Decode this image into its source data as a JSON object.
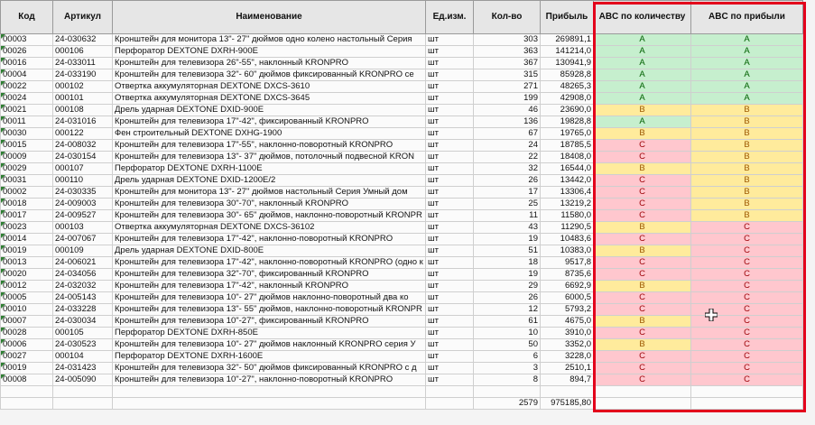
{
  "columns": {
    "code": "Код",
    "article": "Артикул",
    "name": "Наименование",
    "unit": "Ед.изм.",
    "qty": "Кол-во",
    "profit": "Прибыль",
    "abc_qty": "ABC по количеству",
    "abc_profit": "ABC по прибыли"
  },
  "rows": [
    {
      "code": "00003",
      "article": "24-030632",
      "name": "Кронштейн для монитора 13\"- 27\" дюймов одно колено настольный Серия",
      "unit": "шт",
      "qty": "303",
      "profit": "269891,1",
      "abc_qty": "A",
      "abc_profit": "A"
    },
    {
      "code": "00026",
      "article": "000106",
      "name": "Перфоратор DEXTONE DXRH-900E",
      "unit": "шт",
      "qty": "363",
      "profit": "141214,0",
      "abc_qty": "A",
      "abc_profit": "A"
    },
    {
      "code": "00016",
      "article": "24-033011",
      "name": "Кронштейн для телевизора 26\"-55\", наклонный KRONPRO",
      "unit": "шт",
      "qty": "367",
      "profit": "130941,9",
      "abc_qty": "A",
      "abc_profit": "A"
    },
    {
      "code": "00004",
      "article": "24-033190",
      "name": "Кронштейн для телевизора  32\"- 60\" дюймов фиксированный KRONPRO се",
      "unit": "шт",
      "qty": "315",
      "profit": "85928,8",
      "abc_qty": "A",
      "abc_profit": "A"
    },
    {
      "code": "00022",
      "article": "000102",
      "name": "Отвертка аккумуляторная DEXTONE DXCS-3610",
      "unit": "шт",
      "qty": "271",
      "abc_qty": "A",
      "profit": "48265,3",
      "abc_profit": "A"
    },
    {
      "code": "00024",
      "article": "000101",
      "name": "Отвертка аккумуляторная DEXTONE DXCS-3645",
      "unit": "шт",
      "qty": "199",
      "profit": "42908,0",
      "abc_qty": "A",
      "abc_profit": "A"
    },
    {
      "code": "00021",
      "article": "000108",
      "name": "Дрель ударная DEXTONE DXID-900E",
      "unit": "шт",
      "qty": "46",
      "profit": "23690,0",
      "abc_qty": "B",
      "abc_profit": "B"
    },
    {
      "code": "00011",
      "article": "24-031016",
      "name": "Кронштейн для телевизора 17\"-42\", фиксированный KRONPRO",
      "unit": "шт",
      "qty": "136",
      "profit": "19828,8",
      "abc_qty": "A",
      "abc_profit": "B"
    },
    {
      "code": "00030",
      "article": "000122",
      "name": "Фен строительный  DEXTONE DXHG-1900",
      "unit": "шт",
      "qty": "67",
      "profit": "19765,0",
      "abc_qty": "B",
      "abc_profit": "B"
    },
    {
      "code": "00015",
      "article": "24-008032",
      "name": "Кронштейн для телевизора 17\"-55\", наклонно-поворотный KRONPRO",
      "unit": "шт",
      "qty": "24",
      "profit": "18785,5",
      "abc_qty": "C",
      "abc_profit": "B"
    },
    {
      "code": "00009",
      "article": "24-030154",
      "name": "Кронштейн для телевизора 13\"- 37\" дюймов, потолочный подвесной  KRON",
      "unit": "шт",
      "qty": "22",
      "profit": "18408,0",
      "abc_qty": "C",
      "abc_profit": "B"
    },
    {
      "code": "00029",
      "article": "000107",
      "name": "Перфоратор DEXTONE DXRH-1100E",
      "unit": "шт",
      "qty": "32",
      "profit": "16544,0",
      "abc_qty": "B",
      "abc_profit": "B"
    },
    {
      "code": "00031",
      "article": "000110",
      "name": "Дрель ударная DEXTONE DXID-1200E/2",
      "unit": "шт",
      "qty": "26",
      "profit": "13442,0",
      "abc_qty": "C",
      "abc_profit": "B"
    },
    {
      "code": "00002",
      "article": "24-030335",
      "name": "Кронштейн для монитора 13\"- 27\" дюймов настольный  Серия Умный дом",
      "unit": "шт",
      "qty": "17",
      "profit": "13306,4",
      "abc_qty": "C",
      "abc_profit": "B"
    },
    {
      "code": "00018",
      "article": "24-009003",
      "name": "Кронштейн для телевизора 30\"-70\", наклонный KRONPRO",
      "unit": "шт",
      "qty": "25",
      "profit": "13219,2",
      "abc_qty": "C",
      "abc_profit": "B"
    },
    {
      "code": "00017",
      "article": "24-009527",
      "name": "Кронштейн для телевизора 30\"- 65\" дюймов, наклонно-поворотный KRONPR",
      "unit": "шт",
      "qty": "11",
      "profit": "11580,0",
      "abc_qty": "C",
      "abc_profit": "B"
    },
    {
      "code": "00023",
      "article": "000103",
      "name": "Отвертка аккумуляторная DEXTONE DXCS-36102",
      "unit": "шт",
      "qty": "43",
      "profit": "11290,5",
      "abc_qty": "B",
      "abc_profit": "C"
    },
    {
      "code": "00014",
      "article": "24-007067",
      "name": "Кронштейн для телевизора 17\"-42\", наклонно-поворотный KRONPRO",
      "unit": "шт",
      "qty": "19",
      "profit": "10483,6",
      "abc_qty": "C",
      "abc_profit": "C"
    },
    {
      "code": "00019",
      "article": "000109",
      "name": "Дрель ударная DEXTONE DXID-800E",
      "unit": "шт",
      "qty": "51",
      "profit": "10383,0",
      "abc_qty": "B",
      "abc_profit": "C"
    },
    {
      "code": "00013",
      "article": "24-006021",
      "name": "Кронштейн для телевизора 17\"-42\", наклонно-поворотный KRONPRO (одно к",
      "unit": "шт",
      "qty": "18",
      "profit": "9517,8",
      "abc_qty": "C",
      "abc_profit": "C"
    },
    {
      "code": "00020",
      "article": "24-034056",
      "name": "Кронштейн для телевизора 32\"-70\", фиксированный KRONPRO",
      "unit": "шт",
      "qty": "19",
      "profit": "8735,6",
      "abc_qty": "C",
      "abc_profit": "C"
    },
    {
      "code": "00012",
      "article": "24-032032",
      "name": "Кронштейн для телевизора 17\"-42\", наклонный KRONPRO",
      "unit": "шт",
      "qty": "29",
      "profit": "6692,9",
      "abc_qty": "B",
      "abc_profit": "C"
    },
    {
      "code": "00005",
      "article": "24-005143",
      "name": "Кронштейн для телевизора 10\"- 27\" дюймов  наклонно-поворотный  два  ко",
      "unit": "шт",
      "qty": "26",
      "profit": "6000,5",
      "abc_qty": "C",
      "abc_profit": "C"
    },
    {
      "code": "00010",
      "article": "24-033228",
      "name": "Кронштейн для телевизора 13\"- 55\" дюймов, наклонно-поворотный KRONPR",
      "unit": "шт",
      "qty": "12",
      "profit": "5793,2",
      "abc_qty": "C",
      "abc_profit": "C"
    },
    {
      "code": "00007",
      "article": "24-030034",
      "name": "Кронштейн для телевизора 10\"-27\", фиксированный KRONPRO",
      "unit": "шт",
      "qty": "61",
      "profit": "4675,0",
      "abc_qty": "B",
      "abc_profit": "C"
    },
    {
      "code": "00028",
      "article": "000105",
      "name": "Перфоратор DEXTONE DXRH-850E",
      "unit": "шт",
      "qty": "10",
      "profit": "3910,0",
      "abc_qty": "C",
      "abc_profit": "C"
    },
    {
      "code": "00006",
      "article": "24-030523",
      "name": "Кронштейн для телевизора 10\"- 27\" дюймов  наклонный KRONPRO  серия У",
      "unit": "шт",
      "qty": "50",
      "profit": "3352,0",
      "abc_qty": "B",
      "abc_profit": "C"
    },
    {
      "code": "00027",
      "article": "000104",
      "name": "Перфоратор DEXTONE DXRH-1600E",
      "unit": "шт",
      "qty": "6",
      "profit": "3228,0",
      "abc_qty": "C",
      "abc_profit": "C"
    },
    {
      "code": "00019",
      "article": "24-031423",
      "name": "Кронштейн для телевизора 32\"- 50\" дюймов фиксированный KRONPRO с д",
      "unit": "шт",
      "qty": "3",
      "profit": "2510,1",
      "abc_qty": "C",
      "abc_profit": "C"
    },
    {
      "code": "00008",
      "article": "24-005090",
      "name": "Кронштейн для телевизора 10\"-27\", наклонно-поворотный KRONPRO",
      "unit": "шт",
      "qty": "8",
      "profit": "894,7",
      "abc_qty": "C",
      "abc_profit": "C"
    }
  ],
  "totals": {
    "qty": "2579",
    "profit": "975185,80"
  },
  "colors": {
    "grade_A_fill": "#c6efce",
    "grade_B_fill": "#ffeb9c",
    "grade_C_fill": "#ffc7ce",
    "highlight_border": "#e3001b"
  }
}
